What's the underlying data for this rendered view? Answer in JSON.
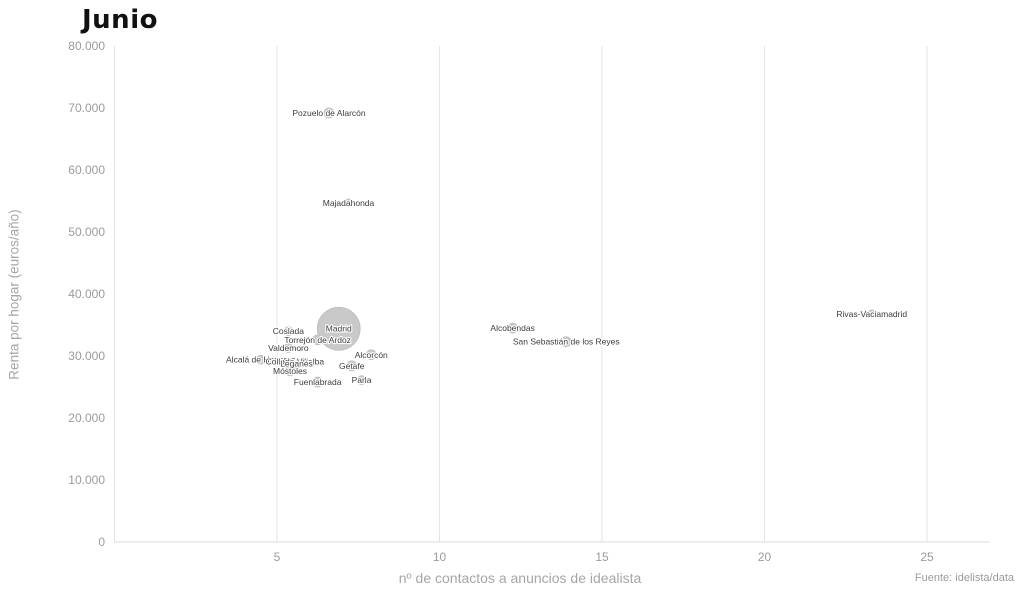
{
  "page_title": "Junio",
  "source": "Fuente: idelista/data",
  "colors": {
    "bubble_fill": "#c9c9c9",
    "bubble_stroke": "#bcbcbc",
    "grid_line": "#e5e5e5",
    "axis_line": "#dcdcdc",
    "tick_text": "#9b9b9b",
    "axis_title_text": "#a6a6a6",
    "point_label_text": "#3d3d3d",
    "title_text": "#111111",
    "source_text": "#9b9b9b"
  },
  "chart_data": {
    "type": "scatter",
    "title": "Junio",
    "xlabel": "nº de contactos a anuncios de idealista",
    "ylabel": "Renta por hogar (euros/año)",
    "xlim": [
      0,
      26.9
    ],
    "ylim": [
      0,
      80000
    ],
    "x_ticks": [
      5,
      10,
      15,
      20,
      25
    ],
    "y_ticks": [
      0,
      10000,
      20000,
      30000,
      40000,
      50000,
      60000,
      70000,
      80000
    ],
    "y_tick_labels": [
      "0",
      "10.000",
      "20.000",
      "30.000",
      "40.000",
      "50.000",
      "60.000",
      "70.000",
      "80.000"
    ],
    "grid": "vertical-only",
    "legend": "none",
    "points": [
      {
        "name": "Pozuelo de Alarcón",
        "x": 6.6,
        "y": 69200,
        "r": 5
      },
      {
        "name": "Majadahonda",
        "x": 7.2,
        "y": 54700,
        "r": 4
      },
      {
        "name": "Rivas-Vaciamadrid",
        "x": 23.3,
        "y": 36800,
        "r": 4
      },
      {
        "name": "Madrid",
        "x": 6.9,
        "y": 34400,
        "r": 21.5
      },
      {
        "name": "Alcobendas",
        "x": 12.25,
        "y": 34500,
        "r": 5
      },
      {
        "name": "Coslada",
        "x": 5.35,
        "y": 34000,
        "r": 4.5
      },
      {
        "name": "Torrejón de Ardoz",
        "x": 6.25,
        "y": 32600,
        "r": 5
      },
      {
        "name": "San Sebastián de los Reyes",
        "x": 13.9,
        "y": 32300,
        "r": 5
      },
      {
        "name": "Valdemoro",
        "x": 5.35,
        "y": 31300,
        "r": 4.5
      },
      {
        "name": "Alcorcón",
        "x": 7.9,
        "y": 30200,
        "r": 5
      },
      {
        "name": "Alcalá de Henares",
        "x": 4.5,
        "y": 29400,
        "r": 4.5
      },
      {
        "name": "Collado Villalba",
        "x": 5.55,
        "y": 29100,
        "r": 4
      },
      {
        "name": "Leganés",
        "x": 5.6,
        "y": 28800,
        "r": 5
      },
      {
        "name": "Getafe",
        "x": 7.3,
        "y": 28400,
        "r": 5
      },
      {
        "name": "Móstoles",
        "x": 5.4,
        "y": 27600,
        "r": 5
      },
      {
        "name": "Parla",
        "x": 7.6,
        "y": 26100,
        "r": 4.5
      },
      {
        "name": "Fuenlabrada",
        "x": 6.25,
        "y": 25800,
        "r": 5
      }
    ]
  }
}
